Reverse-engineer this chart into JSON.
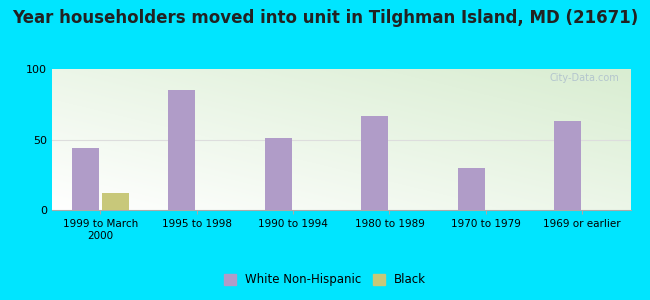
{
  "title": "Year householders moved into unit in Tilghman Island, MD (21671)",
  "categories": [
    "1999 to March\n2000",
    "1995 to 1998",
    "1990 to 1994",
    "1980 to 1989",
    "1970 to 1979",
    "1969 or earlier"
  ],
  "white_values": [
    44,
    85,
    51,
    67,
    30,
    63
  ],
  "black_values": [
    12,
    0,
    0,
    0,
    0,
    0
  ],
  "white_color": "#b09cc8",
  "black_color": "#c8c87a",
  "background_outer": "#00e5ff",
  "ylim": [
    0,
    100
  ],
  "yticks": [
    0,
    50,
    100
  ],
  "title_fontsize": 12,
  "watermark": "City-Data.com"
}
